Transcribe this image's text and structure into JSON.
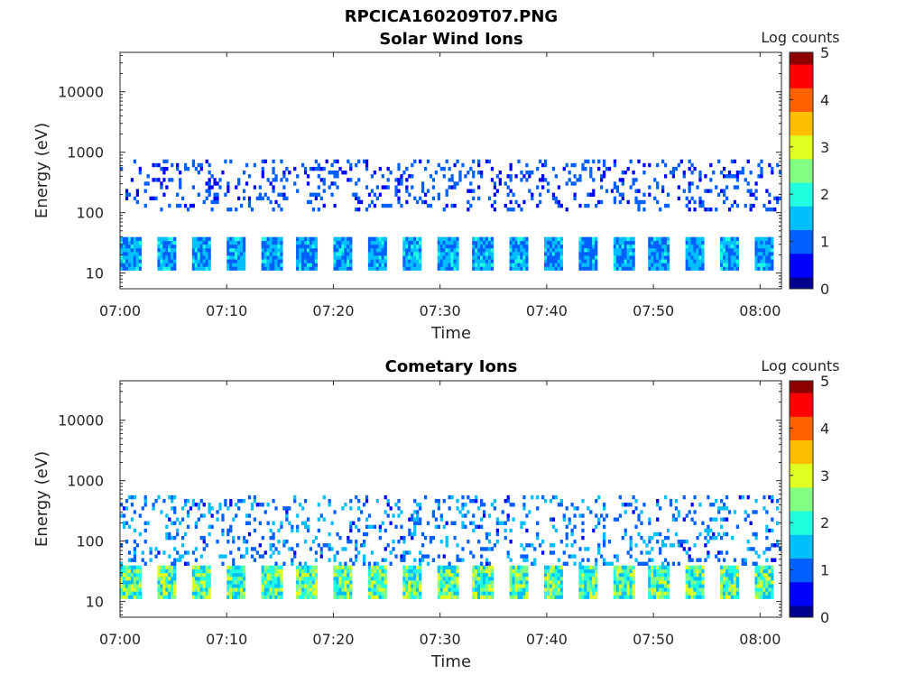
{
  "figure": {
    "title": "RPCICA160209T07.PNG"
  },
  "palette": [
    "#00008f",
    "#0000ff",
    "#0060ff",
    "#00bfff",
    "#20ffdf",
    "#80ff80",
    "#dfff20",
    "#ffbf00",
    "#ff6000",
    "#ff0000",
    "#8f0000"
  ],
  "chart_data": [
    {
      "type": "heatmap",
      "title": "Solar Wind Ions",
      "xlabel": "Time",
      "ylabel": "Energy (eV)",
      "yscale": "log",
      "ylim": [
        5.5,
        45000
      ],
      "xlim": [
        "07:00",
        "08:02"
      ],
      "x_ticks": [
        "07:00",
        "07:10",
        "07:20",
        "07:30",
        "07:40",
        "07:50",
        "08:00"
      ],
      "y_ticks": [
        "10",
        "100",
        "1000",
        "10000"
      ],
      "colorbar": {
        "label": "Log counts",
        "range": [
          0,
          5
        ],
        "ticks": [
          "0",
          "1",
          "2",
          "3",
          "4",
          "5"
        ]
      },
      "sweep_period_min": 3.3,
      "bands": [
        {
          "e_min": 11,
          "e_max": 38,
          "log_counts": 1.4
        },
        {
          "e_min": 100,
          "e_max": 700,
          "log_counts": 0.9
        }
      ]
    },
    {
      "type": "heatmap",
      "title": "Cometary Ions",
      "xlabel": "Time",
      "ylabel": "Energy (eV)",
      "yscale": "log",
      "ylim": [
        5.5,
        45000
      ],
      "xlim": [
        "07:00",
        "08:02"
      ],
      "x_ticks": [
        "07:00",
        "07:10",
        "07:20",
        "07:30",
        "07:40",
        "07:50",
        "08:00"
      ],
      "y_ticks": [
        "10",
        "100",
        "1000",
        "10000"
      ],
      "colorbar": {
        "label": "Log counts",
        "range": [
          0,
          5
        ],
        "ticks": [
          "0",
          "1",
          "2",
          "3",
          "4",
          "5"
        ]
      },
      "sweep_period_min": 3.3,
      "bands": [
        {
          "e_min": 11,
          "e_max": 38,
          "log_counts": 2.4
        },
        {
          "e_min": 38,
          "e_max": 500,
          "log_counts": 1.2
        }
      ]
    }
  ]
}
